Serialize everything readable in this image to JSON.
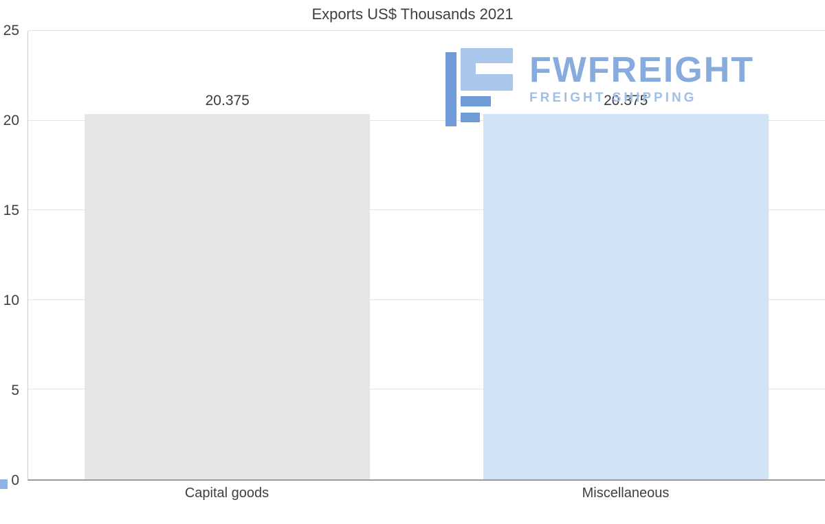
{
  "chart_data": {
    "type": "bar",
    "title": "Exports US$ Thousands 2021",
    "categories": [
      "Capital goods",
      "Miscellaneous"
    ],
    "values": [
      20.375,
      20.375
    ],
    "value_labels": [
      "20.375",
      "20.375"
    ],
    "bar_colors": [
      "#e6e6e6",
      "#d2e3f7"
    ],
    "ylim": [
      0,
      25
    ],
    "yticks": [
      0,
      5,
      10,
      15,
      20,
      25
    ],
    "grid": true,
    "legend": false,
    "xlabel": "",
    "ylabel": ""
  },
  "watermark": {
    "brand": "FWFREIGHT",
    "tagline": "FREIGHT SHIPPING",
    "brand_color": "#87abdd"
  },
  "colors": {
    "grid": "#e4e4e4",
    "axis": "#9a9a9a",
    "text": "#3f3f3f",
    "background": "#ffffff"
  }
}
